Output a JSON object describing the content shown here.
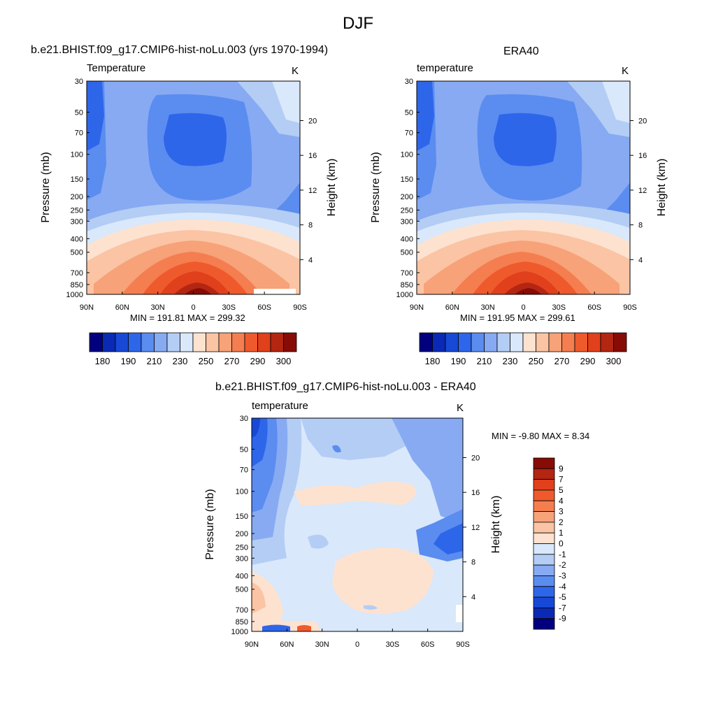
{
  "main_title": "DJF",
  "panels": {
    "model": {
      "title": "b.e21.BHIST.f09_g17.CMIP6-hist-noLu.003 (yrs 1970-1994)",
      "subtitle_left": "Temperature",
      "subtitle_right": "K",
      "minmax": "MIN = 191.81  MAX = 299.32"
    },
    "era": {
      "title": "ERA40",
      "subtitle_left": "temperature",
      "subtitle_right": "K",
      "minmax": "MIN = 191.95  MAX = 299.61"
    },
    "diff": {
      "title": "b.e21.BHIST.f09_g17.CMIP6-hist-noLu.003 - ERA40",
      "subtitle_left": "temperature",
      "subtitle_right": "K",
      "minmax": "MIN =  -9.80  MAX =   8.34"
    }
  },
  "axes": {
    "ylabel_left": "Pressure (mb)",
    "ylabel_right": "Height (km)",
    "pressure_ticks": [
      "30",
      "50",
      "70",
      "100",
      "150",
      "200",
      "250",
      "300",
      "400",
      "500",
      "700",
      "850",
      "1000"
    ],
    "height_ticks": [
      "20",
      "16",
      "12",
      "8",
      "4"
    ],
    "lat_ticks": [
      "90N",
      "60N",
      "30N",
      "0",
      "30S",
      "60S",
      "90S"
    ]
  },
  "colorbar_abs": {
    "colors": [
      "#02007f",
      "#0a2ab5",
      "#1749d6",
      "#2e66ea",
      "#5b8cf0",
      "#87aaf2",
      "#b4cdf5",
      "#d9e8fb",
      "#fde2d0",
      "#fbc4a4",
      "#f7a278",
      "#f47e50",
      "#ef5a2c",
      "#e0401b",
      "#b32612",
      "#870c06"
    ],
    "labels": [
      "180",
      "190",
      "210",
      "230",
      "250",
      "270",
      "290",
      "300"
    ]
  },
  "colorbar_diff": {
    "colors": [
      "#870c06",
      "#b32612",
      "#e0401b",
      "#ef5a2c",
      "#f47e50",
      "#f7a278",
      "#fbc4a4",
      "#fde2d0",
      "#d9e8fb",
      "#b4cdf5",
      "#87aaf2",
      "#5b8cf0",
      "#2e66ea",
      "#1749d6",
      "#0a2ab5",
      "#02007f"
    ],
    "labels": [
      "9",
      "7",
      "5",
      "4",
      "3",
      "2",
      "1",
      "0",
      "-1",
      "-2",
      "-3",
      "-4",
      "-5",
      "-7",
      "-9"
    ]
  },
  "chart_data": [
    {
      "type": "heatmap",
      "title": "b.e21.BHIST.f09_g17.CMIP6-hist-noLu.003 (yrs 1970-1994)",
      "variable": "Temperature",
      "units": "K",
      "xlabel": "",
      "ylabel": "Pressure (mb)",
      "ylabel_right": "Height (km)",
      "x": [
        "90N",
        "60N",
        "30N",
        "0",
        "30S",
        "60S",
        "90S"
      ],
      "y": [
        1000,
        850,
        700,
        500,
        400,
        300,
        250,
        200,
        150,
        100,
        70,
        50,
        30
      ],
      "min": 191.81,
      "max": 299.32
    },
    {
      "type": "heatmap",
      "title": "ERA40",
      "variable": "temperature",
      "units": "K",
      "xlabel": "",
      "ylabel": "Pressure (mb)",
      "ylabel_right": "Height (km)",
      "x": [
        "90N",
        "60N",
        "30N",
        "0",
        "30S",
        "60S",
        "90S"
      ],
      "y": [
        1000,
        850,
        700,
        500,
        400,
        300,
        250,
        200,
        150,
        100,
        70,
        50,
        30
      ],
      "min": 191.95,
      "max": 299.61
    },
    {
      "type": "heatmap",
      "title": "b.e21.BHIST.f09_g17.CMIP6-hist-noLu.003 - ERA40",
      "variable": "temperature",
      "units": "K",
      "xlabel": "",
      "ylabel": "Pressure (mb)",
      "ylabel_right": "Height (km)",
      "x": [
        "90N",
        "60N",
        "30N",
        "0",
        "30S",
        "60S",
        "90S"
      ],
      "y": [
        1000,
        850,
        700,
        500,
        400,
        300,
        250,
        200,
        150,
        100,
        70,
        50,
        30
      ],
      "min": -9.8,
      "max": 8.34
    }
  ]
}
